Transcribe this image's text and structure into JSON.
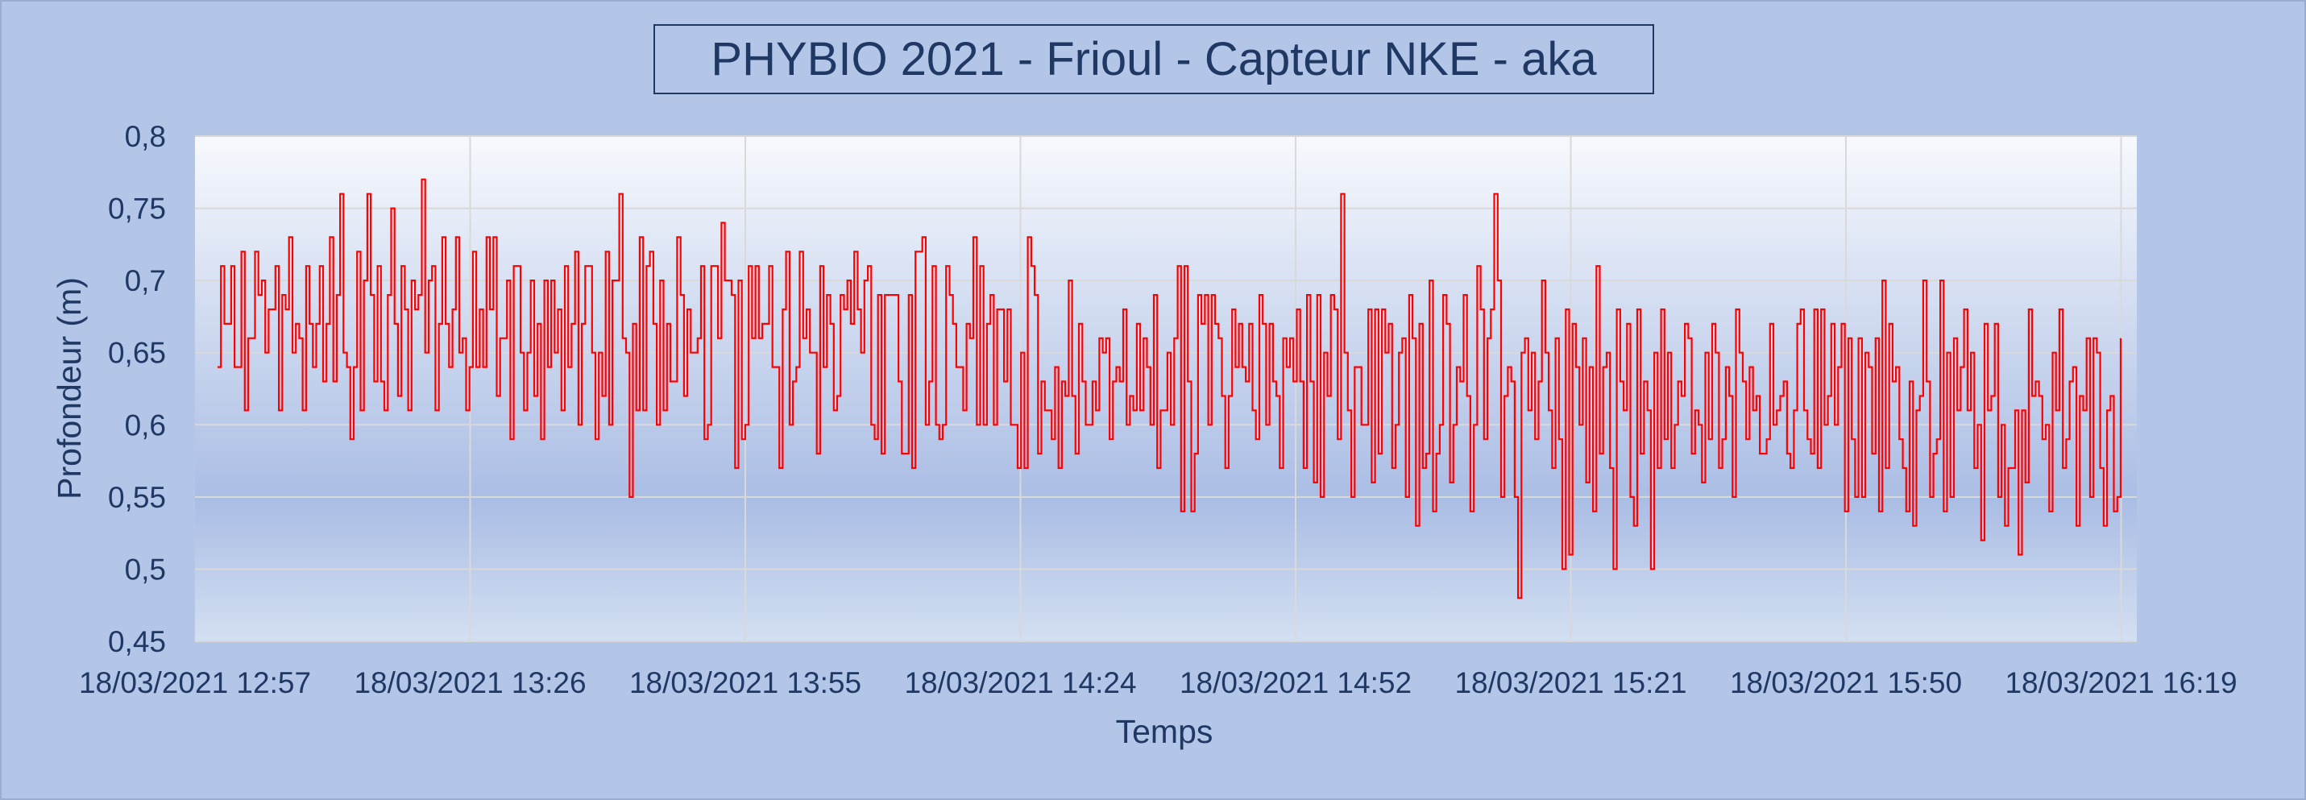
{
  "chart_data": {
    "type": "line",
    "title": "PHYBIO 2021 - Frioul - Capteur NKE - aka",
    "xlabel": "Temps",
    "ylabel": "Profondeur (m)",
    "x_tick_labels": [
      "18/03/2021  12:57",
      "18/03/2021  13:26",
      "18/03/2021  13:55",
      "18/03/2021  14:24",
      "18/03/2021  14:52",
      "18/03/2021  15:21",
      "18/03/2021  15:50",
      "18/03/2021  16:19"
    ],
    "xlim": [
      "18/03/2021 12:57",
      "18/03/2021 16:19"
    ],
    "y_tick_labels": [
      "0,45",
      "0,5",
      "0,55",
      "0,6",
      "0,65",
      "0,7",
      "0,75",
      "0,8"
    ],
    "ylim": [
      0.45,
      0.8
    ],
    "grid": true,
    "legend": "none",
    "sampling_interval_seconds": 1,
    "series": [
      {
        "color": "#ff0000",
        "values": [
          0.64,
          0.71,
          0.67,
          0.67,
          0.71,
          0.64,
          0.64,
          0.72,
          0.61,
          0.66,
          0.66,
          0.72,
          0.69,
          0.7,
          0.65,
          0.68,
          0.68,
          0.71,
          0.61,
          0.69,
          0.68,
          0.73,
          0.65,
          0.67,
          0.66,
          0.61,
          0.71,
          0.67,
          0.64,
          0.67,
          0.71,
          0.63,
          0.67,
          0.73,
          0.63,
          0.69,
          0.76,
          0.65,
          0.64,
          0.59,
          0.64,
          0.72,
          0.61,
          0.7,
          0.76,
          0.69,
          0.63,
          0.71,
          0.63,
          0.61,
          0.69,
          0.75,
          0.67,
          0.62,
          0.71,
          0.68,
          0.61,
          0.7,
          0.68,
          0.69,
          0.77,
          0.65,
          0.7,
          0.71,
          0.61,
          0.67,
          0.73,
          0.67,
          0.64,
          0.68,
          0.73,
          0.65,
          0.66,
          0.61,
          0.64,
          0.72,
          0.64,
          0.68,
          0.64,
          0.73,
          0.68,
          0.73,
          0.62,
          0.66,
          0.66,
          0.7,
          0.59,
          0.71,
          0.71,
          0.65,
          0.61,
          0.65,
          0.7,
          0.62,
          0.67,
          0.59,
          0.7,
          0.64,
          0.7,
          0.65,
          0.68,
          0.61,
          0.71,
          0.64,
          0.67,
          0.72,
          0.6,
          0.67,
          0.71,
          0.71,
          0.65,
          0.59,
          0.65,
          0.62,
          0.72,
          0.6,
          0.7,
          0.7,
          0.76,
          0.66,
          0.65,
          0.55,
          0.67,
          0.61,
          0.73,
          0.61,
          0.71,
          0.72,
          0.67,
          0.6,
          0.7,
          0.61,
          0.67,
          0.63,
          0.63,
          0.73,
          0.69,
          0.62,
          0.68,
          0.65,
          0.65,
          0.66,
          0.71,
          0.59,
          0.6,
          0.71,
          0.71,
          0.66,
          0.74,
          0.7,
          0.7,
          0.69,
          0.57,
          0.7,
          0.59,
          0.6,
          0.71,
          0.66,
          0.71,
          0.66,
          0.67,
          0.67,
          0.71,
          0.64,
          0.64,
          0.57,
          0.68,
          0.72,
          0.6,
          0.63,
          0.64,
          0.72,
          0.66,
          0.68,
          0.65,
          0.65,
          0.58,
          0.71,
          0.64,
          0.69,
          0.67,
          0.61,
          0.62,
          0.69,
          0.68,
          0.7,
          0.67,
          0.72,
          0.68,
          0.65,
          0.7,
          0.71,
          0.6,
          0.59,
          0.69,
          0.58,
          0.69,
          0.69,
          0.69,
          0.69,
          0.63,
          0.58,
          0.58,
          0.69,
          0.57,
          0.72,
          0.72,
          0.73,
          0.6,
          0.63,
          0.71,
          0.6,
          0.59,
          0.6,
          0.71,
          0.69,
          0.67,
          0.64,
          0.64,
          0.61,
          0.67,
          0.66,
          0.73,
          0.6,
          0.71,
          0.6,
          0.67,
          0.69,
          0.6,
          0.68,
          0.68,
          0.63,
          0.68,
          0.6,
          0.6,
          0.57,
          0.65,
          0.57,
          0.73,
          0.71,
          0.69,
          0.58,
          0.63,
          0.61,
          0.61,
          0.59,
          0.64,
          0.57,
          0.63,
          0.62,
          0.7,
          0.62,
          0.58,
          0.67,
          0.63,
          0.6,
          0.6,
          0.63,
          0.61,
          0.66,
          0.65,
          0.66,
          0.59,
          0.63,
          0.64,
          0.63,
          0.68,
          0.6,
          0.62,
          0.61,
          0.67,
          0.61,
          0.66,
          0.64,
          0.6,
          0.69,
          0.57,
          0.61,
          0.61,
          0.65,
          0.6,
          0.66,
          0.71,
          0.54,
          0.71,
          0.63,
          0.54,
          0.58,
          0.69,
          0.67,
          0.69,
          0.6,
          0.69,
          0.67,
          0.66,
          0.62,
          0.57,
          0.62,
          0.68,
          0.64,
          0.67,
          0.64,
          0.63,
          0.67,
          0.61,
          0.59,
          0.69,
          0.67,
          0.6,
          0.67,
          0.63,
          0.62,
          0.57,
          0.66,
          0.64,
          0.66,
          0.63,
          0.68,
          0.63,
          0.57,
          0.69,
          0.63,
          0.56,
          0.69,
          0.55,
          0.65,
          0.62,
          0.69,
          0.68,
          0.59,
          0.76,
          0.65,
          0.61,
          0.55,
          0.64,
          0.64,
          0.6,
          0.6,
          0.68,
          0.56,
          0.68,
          0.58,
          0.68,
          0.65,
          0.67,
          0.57,
          0.6,
          0.65,
          0.66,
          0.55,
          0.69,
          0.66,
          0.53,
          0.67,
          0.57,
          0.58,
          0.7,
          0.54,
          0.58,
          0.6,
          0.69,
          0.67,
          0.56,
          0.6,
          0.64,
          0.63,
          0.69,
          0.62,
          0.54,
          0.6,
          0.71,
          0.68,
          0.59,
          0.66,
          0.68,
          0.76,
          0.7,
          0.55,
          0.62,
          0.64,
          0.63,
          0.55,
          0.48,
          0.65,
          0.66,
          0.61,
          0.65,
          0.59,
          0.63,
          0.7,
          0.65,
          0.61,
          0.57,
          0.66,
          0.59,
          0.5,
          0.68,
          0.51,
          0.67,
          0.64,
          0.6,
          0.66,
          0.56,
          0.64,
          0.54,
          0.71,
          0.58,
          0.64,
          0.65,
          0.57,
          0.5,
          0.68,
          0.63,
          0.61,
          0.67,
          0.55,
          0.53,
          0.68,
          0.58,
          0.63,
          0.61,
          0.5,
          0.65,
          0.57,
          0.68,
          0.59,
          0.65,
          0.57,
          0.6,
          0.63,
          0.62,
          0.67,
          0.66,
          0.58,
          0.61,
          0.6,
          0.56,
          0.65,
          0.59,
          0.67,
          0.65,
          0.57,
          0.59,
          0.64,
          0.62,
          0.55,
          0.68,
          0.65,
          0.63,
          0.59,
          0.64,
          0.61,
          0.62,
          0.58,
          0.58,
          0.59,
          0.67,
          0.6,
          0.61,
          0.62,
          0.63,
          0.58,
          0.57,
          0.61,
          0.67,
          0.68,
          0.61,
          0.59,
          0.58,
          0.68,
          0.57,
          0.68,
          0.6,
          0.62,
          0.67,
          0.6,
          0.64,
          0.67,
          0.54,
          0.66,
          0.59,
          0.55,
          0.66,
          0.55,
          0.65,
          0.64,
          0.58,
          0.66,
          0.54,
          0.7,
          0.57,
          0.67,
          0.63,
          0.64,
          0.59,
          0.57,
          0.54,
          0.63,
          0.53,
          0.61,
          0.62,
          0.7,
          0.63,
          0.55,
          0.58,
          0.59,
          0.7,
          0.54,
          0.65,
          0.55,
          0.66,
          0.61,
          0.64,
          0.68,
          0.61,
          0.65,
          0.57,
          0.6,
          0.52,
          0.67,
          0.61,
          0.62,
          0.67,
          0.55,
          0.6,
          0.53,
          0.57,
          0.57,
          0.61,
          0.51,
          0.61,
          0.56,
          0.68,
          0.62,
          0.63,
          0.62,
          0.59,
          0.6,
          0.54,
          0.65,
          0.61,
          0.68,
          0.57,
          0.59,
          0.63,
          0.64,
          0.53,
          0.62,
          0.61,
          0.66,
          0.55,
          0.66,
          0.65,
          0.57,
          0.53,
          0.61,
          0.62,
          0.54,
          0.55,
          0.66
        ]
      }
    ]
  }
}
